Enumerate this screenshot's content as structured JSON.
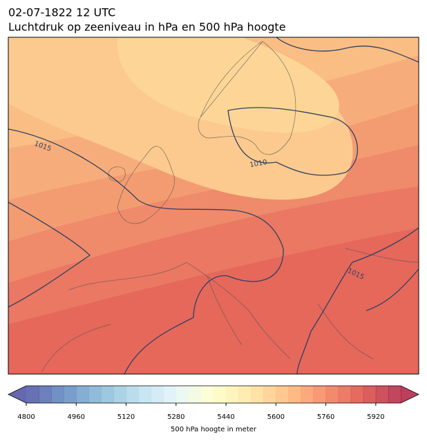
{
  "header": {
    "date": "02-07-1822 12 UTC",
    "title": "Luchtdruk op zeeniveau in hPa en 500 hPa hoogte"
  },
  "map": {
    "isobar_labels": [
      "1015",
      "1010",
      "1015"
    ]
  },
  "colorbar": {
    "label": "500 hPa hoogte in meter",
    "lim": [
      4800,
      6000
    ],
    "step": 40,
    "ticks": [
      4800,
      4960,
      5120,
      5280,
      5440,
      5600,
      5760,
      5920
    ],
    "colors": [
      "#313695",
      "#4575b4",
      "#74add1",
      "#abd9e9",
      "#e0f3f8",
      "#ffffbf",
      "#fee090",
      "#fdae61",
      "#f46d43",
      "#d73027",
      "#a50026"
    ]
  }
}
